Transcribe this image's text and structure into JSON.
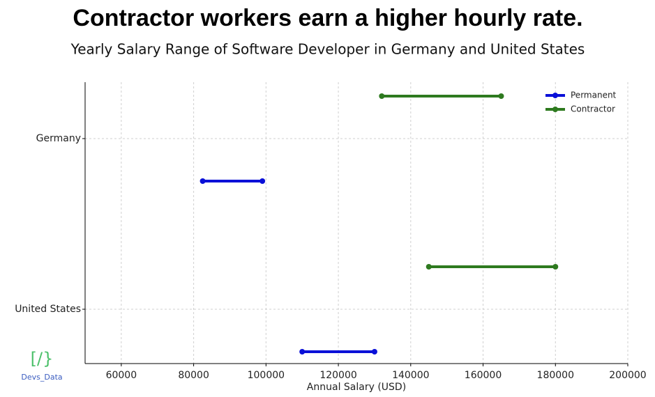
{
  "chart_data": {
    "type": "dumbbell",
    "title": "Contractor workers earn a higher hourly rate.",
    "subtitle": "Yearly Salary Range of Software Developer in Germany and United States",
    "x_label": "Annual Salary (USD)",
    "categories": [
      "Germany",
      "United States"
    ],
    "series": [
      {
        "name": "Permanent",
        "color": "#0a10d8",
        "low": [
          82500,
          110000
        ],
        "high": [
          99000,
          130000
        ]
      },
      {
        "name": "Contractor",
        "color": "#2e7a1f",
        "low": [
          132000,
          145000
        ],
        "high": [
          165000,
          180000
        ]
      }
    ],
    "xlim": [
      50000,
      200000
    ],
    "xticks": [
      60000,
      80000,
      100000,
      120000,
      140000,
      160000,
      180000,
      200000
    ],
    "grid": true,
    "legend": "upper right",
    "watermark": {
      "symbol": "[/}",
      "text": "Devs_Data"
    }
  }
}
